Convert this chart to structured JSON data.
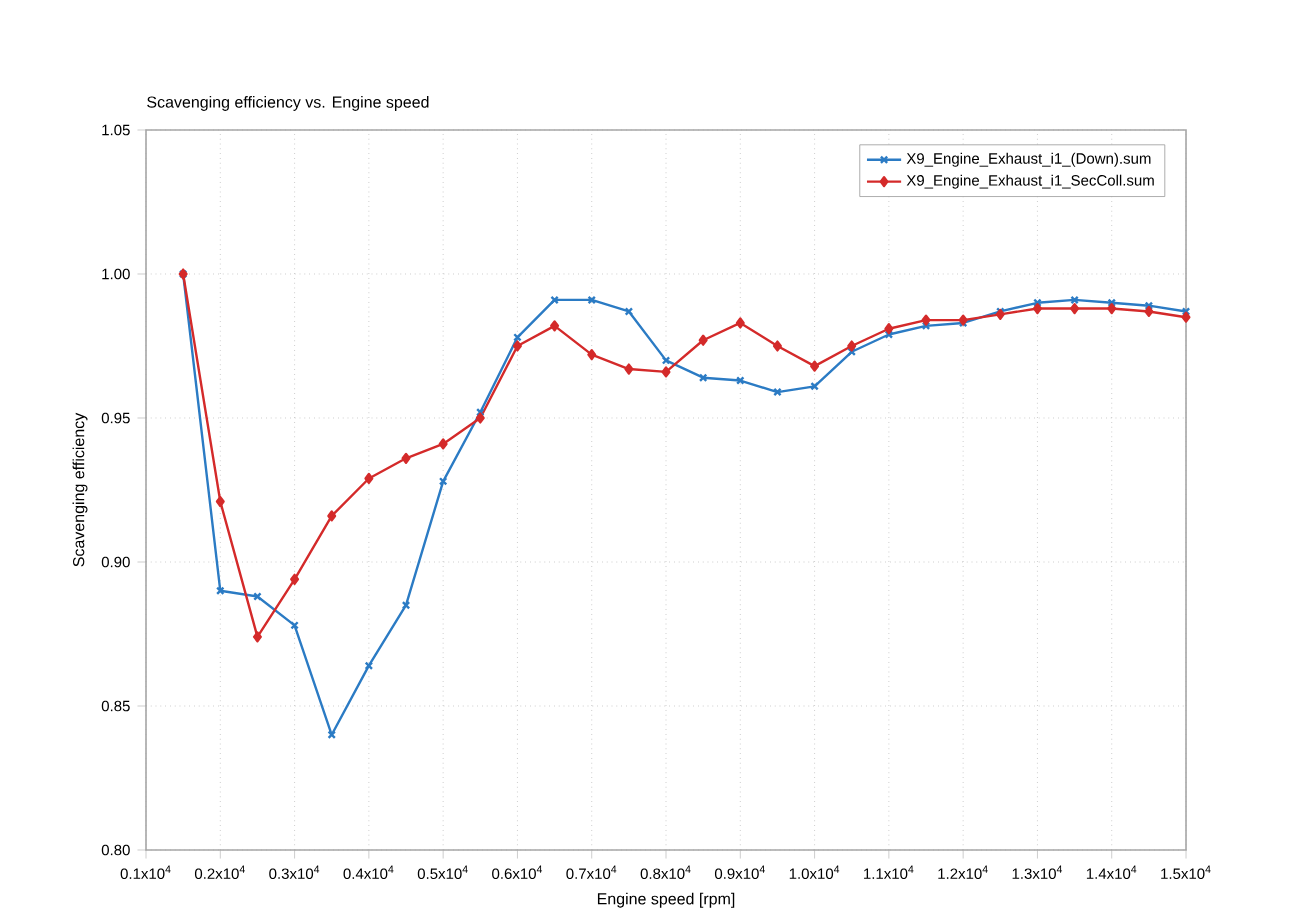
{
  "chart_data": {
    "type": "line",
    "title": "Scavenging efficiency vs. Engine speed",
    "xlabel": "Engine speed  [rpm]",
    "ylabel": "Scavenging efficiency",
    "x": [
      1500,
      2000,
      2500,
      3000,
      3500,
      4000,
      4500,
      5000,
      5500,
      6000,
      6500,
      7000,
      7500,
      8000,
      8500,
      9000,
      9500,
      10000,
      10500,
      11000,
      11500,
      12000,
      12500,
      13000,
      13500,
      14000,
      14500,
      15000
    ],
    "series": [
      {
        "name": "X9_Engine_Exhaust_i1_(Down).sum",
        "color": "#2b7bc4",
        "marker": "cross",
        "values": [
          1.0,
          0.89,
          0.888,
          0.878,
          0.84,
          0.864,
          0.885,
          0.928,
          0.952,
          0.978,
          0.991,
          0.991,
          0.987,
          0.97,
          0.964,
          0.963,
          0.959,
          0.961,
          0.973,
          0.979,
          0.982,
          0.983,
          0.987,
          0.99,
          0.991,
          0.99,
          0.989,
          0.987
        ]
      },
      {
        "name": "X9_Engine_Exhaust_i1_SecColl.sum",
        "color": "#d42a2a",
        "marker": "diamond",
        "values": [
          1.0,
          0.921,
          0.874,
          0.894,
          0.916,
          0.929,
          0.936,
          0.941,
          0.95,
          0.975,
          0.982,
          0.972,
          0.967,
          0.966,
          0.977,
          0.983,
          0.975,
          0.968,
          0.975,
          0.981,
          0.984,
          0.984,
          0.986,
          0.988,
          0.988,
          0.988,
          0.987,
          0.985
        ]
      }
    ],
    "xlim": [
      1000,
      15000
    ],
    "xticks": [
      {
        "value": 1000,
        "label": "0.1x10$^{4}$"
      },
      {
        "value": 2000,
        "label": "0.2x10$^{4}$"
      },
      {
        "value": 3000,
        "label": "0.3x10$^{4}$"
      },
      {
        "value": 4000,
        "label": "0.4x10$^{4}$"
      },
      {
        "value": 5000,
        "label": "0.5x10$^{4}$"
      },
      {
        "value": 6000,
        "label": "0.6x10$^{4}$"
      },
      {
        "value": 7000,
        "label": "0.7x10$^{4}$"
      },
      {
        "value": 8000,
        "label": "0.8x10$^{4}$"
      },
      {
        "value": 9000,
        "label": "0.9x10$^{4}$"
      },
      {
        "value": 10000,
        "label": "1.0x10$^{4}$"
      },
      {
        "value": 11000,
        "label": "1.1x10$^{4}$"
      },
      {
        "value": 12000,
        "label": "1.2x10$^{4}$"
      },
      {
        "value": 13000,
        "label": "1.3x10$^{4}$"
      },
      {
        "value": 14000,
        "label": "1.4x10$^{4}$"
      },
      {
        "value": 15000,
        "label": "1.5x10$^{4}$"
      }
    ],
    "ylim": [
      0.8,
      1.05
    ],
    "yticks": [
      {
        "value": 0.8,
        "label": "0.80"
      },
      {
        "value": 0.85,
        "label": "0.85"
      },
      {
        "value": 0.9,
        "label": "0.90"
      },
      {
        "value": 0.95,
        "label": "0.95"
      },
      {
        "value": 1.0,
        "label": "1.00"
      },
      {
        "value": 1.05,
        "label": "1.05"
      }
    ],
    "grid": true,
    "legend": "top right",
    "line_style": "solid"
  }
}
